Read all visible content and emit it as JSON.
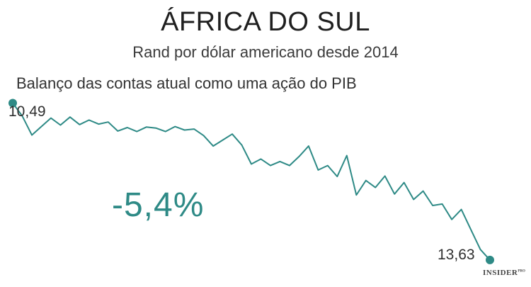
{
  "title": "ÁFRICA DO SUL",
  "subtitle": "Rand por dólar americano desde 2014",
  "series_label": "Balanço das contas atual como uma ação do PIB",
  "start_value_label": "10,49",
  "end_value_label": "13,63",
  "highlight_value": "-5,4%",
  "brand": {
    "name": "INSIDER",
    "suffix": "PRO"
  },
  "colors": {
    "line": "#2e8a86",
    "highlight": "#2e8a86",
    "text": "#222222"
  },
  "chart_data": {
    "type": "line",
    "title": "ÁFRICA DO SUL",
    "subtitle": "Rand por dólar americano desde 2014",
    "ylim": [
      10.2,
      14.1
    ],
    "grid": false,
    "legend": "none",
    "series": [
      {
        "name": "Balanço das contas atual como uma ação do PIB",
        "values": [
          10.49,
          10.75,
          11.13,
          10.96,
          10.79,
          10.93,
          10.77,
          10.92,
          10.83,
          10.91,
          10.87,
          11.05,
          10.98,
          11.06,
          10.97,
          10.99,
          11.06,
          10.96,
          11.03,
          11.01,
          11.14,
          11.35,
          11.23,
          11.11,
          11.33,
          11.71,
          11.61,
          11.74,
          11.66,
          11.74,
          11.56,
          11.35,
          11.83,
          11.74,
          11.96,
          11.54,
          12.33,
          12.04,
          12.18,
          11.95,
          12.31,
          12.08,
          12.42,
          12.25,
          12.54,
          12.51,
          12.82,
          12.62,
          13.02,
          13.42,
          13.63
        ]
      }
    ]
  }
}
